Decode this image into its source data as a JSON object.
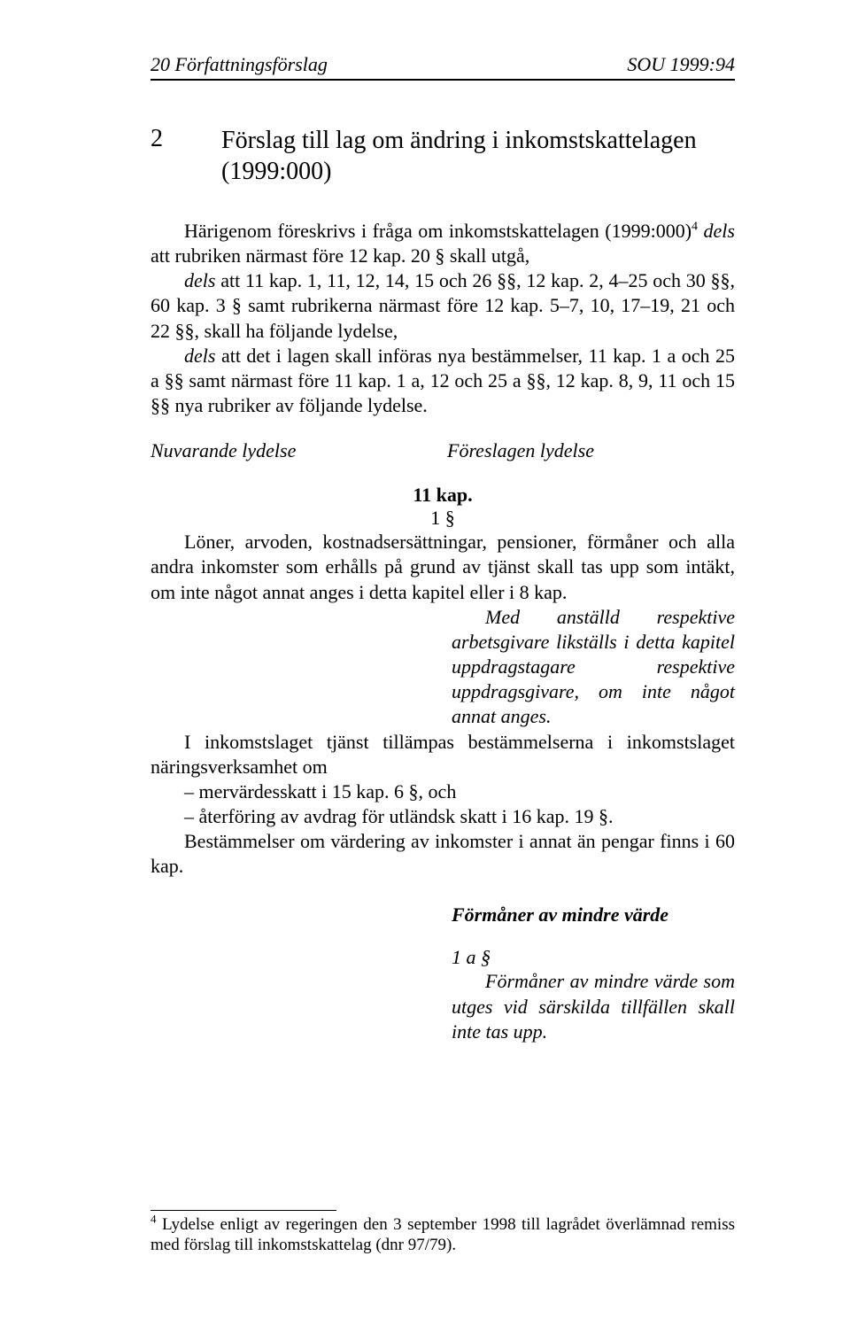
{
  "header": {
    "left_page": "20",
    "left_title": "Författningsförslag",
    "right": "SOU 1999:94"
  },
  "title": {
    "num": "2",
    "text": "Förslag till lag om ändring i inkomstskattelagen (1999:000)"
  },
  "intro": {
    "p1a": "Härigenom föreskrivs i fråga om inkomstskattelagen (1999:000)",
    "p1_sup": "4",
    "p1b_i": "dels",
    "p1b_rest": " att rubriken närmast före 12 kap. 20 § skall utgå,",
    "p2_i": "dels",
    "p2_rest": " att 11 kap. 1, 11, 12, 14, 15 och 26 §§, 12 kap. 2, 4–25 och 30 §§, 60 kap. 3 § samt rubrikerna närmast före 12 kap. 5–7, 10, 17–19, 21 och 22 §§, skall ha följande lydelse,",
    "p3_i": "dels",
    "p3_rest": " att det i lagen skall införas nya bestämmelser, 11 kap. 1 a och 25 a §§ samt närmast före 11 kap. 1 a, 12 och 25 a §§, 12 kap. 8, 9, 11 och 15 §§ nya rubriker av följande lydelse."
  },
  "lydelse": {
    "left": "Nuvarande lydelse",
    "right": "Föreslagen lydelse"
  },
  "kap11": {
    "heading": "11 kap.",
    "num": "1 §",
    "para1": "Löner, arvoden, kostnadsersättningar, pensioner, förmåner och alla andra inkomster som erhålls på grund av tjänst skall tas upp som intäkt, om inte något annat anges i detta kapitel eller i 8 kap.",
    "right_block": "Med anställd respektive arbetsgivare likställs i detta kapitel uppdragstagare respektive uppdragsgivare, om inte något annat anges.",
    "para2": "I inkomstslaget tjänst tillämpas bestämmelserna i inkomstslaget näringsverksamhet om",
    "list1": "– mervärdesskatt i 15 kap. 6 §, och",
    "list2": "– återföring av avdrag för utländsk skatt i 16 kap. 19 §.",
    "para3": "Bestämmelser om värdering av inkomster i annat än pengar finns i 60 kap."
  },
  "formaner": {
    "heading": "Förmåner av mindre värde",
    "secnum": "1 a §",
    "text": "Förmåner av mindre värde som utges vid särskilda tillfällen skall inte tas upp."
  },
  "footnote": {
    "sup": "4",
    "text": " Lydelse enligt av regeringen den 3 september 1998 till lagrådet överlämnad remiss med förslag till inkomstskattelag (dnr 97/79)."
  }
}
